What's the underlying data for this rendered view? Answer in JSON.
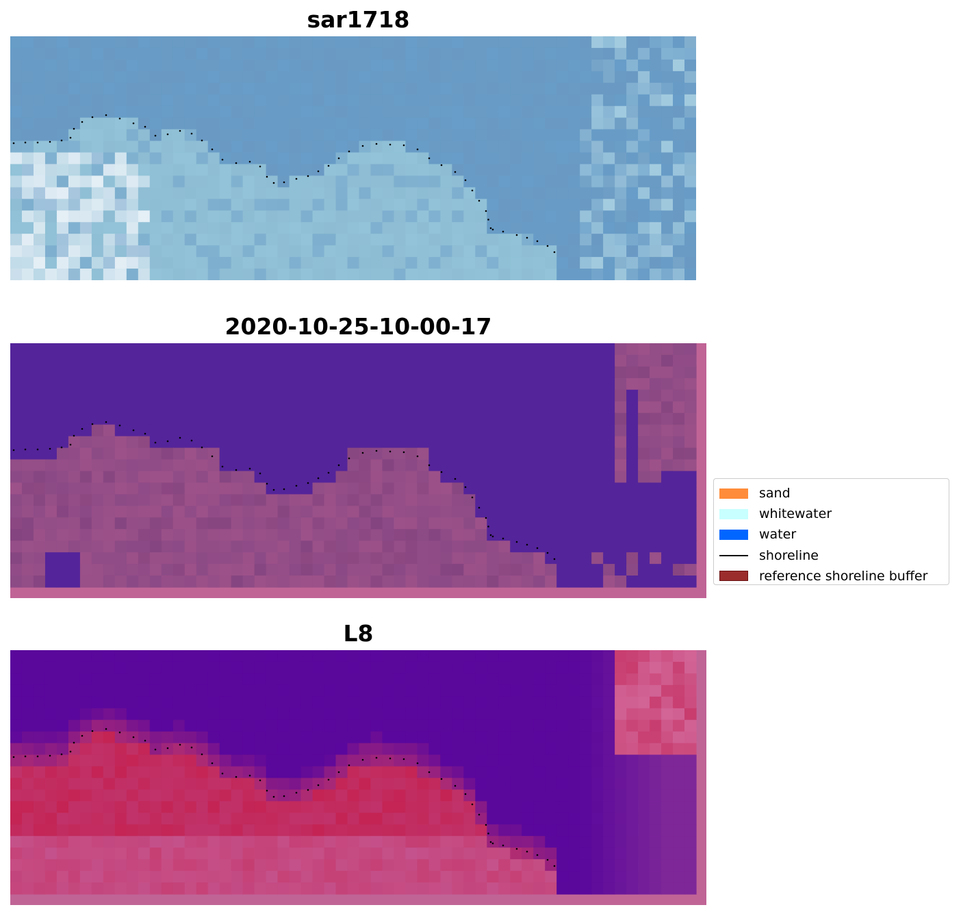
{
  "panels": [
    {
      "title": "sar1718",
      "kind": "rgb"
    },
    {
      "title": "2020-10-25-10-00-17",
      "kind": "classified"
    },
    {
      "title": "L8",
      "kind": "index"
    }
  ],
  "legend": [
    {
      "label": "sand",
      "color": "#ff8c3a"
    },
    {
      "label": "whitewater",
      "color": "#c8ffff"
    },
    {
      "label": "water",
      "color": "#0066ff"
    },
    {
      "label": "shoreline",
      "color": "#000000",
      "line": true
    },
    {
      "label": "reference shoreline buffer",
      "color": "#9b2d2d"
    }
  ],
  "colors": {
    "ocean_rgb": "#6a9ac3",
    "land_rgb": "#8dbcd3",
    "classified_water": "#54249a",
    "classified_land": "#8b4a86",
    "index_water": "#5a079d",
    "index_land": "#c0336a",
    "buffer_pink": "#c06496"
  }
}
